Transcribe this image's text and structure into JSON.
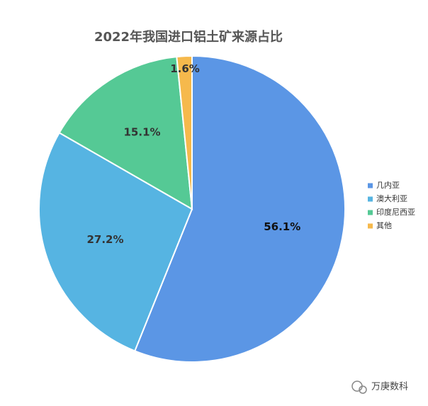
{
  "chart_data": {
    "type": "pie",
    "title": "2022年我国进口铝土矿来源占比",
    "categories": [
      "几内亚",
      "澳大利亚",
      "印度尼西亚",
      "其他"
    ],
    "values": [
      56.1,
      27.2,
      15.1,
      1.6
    ],
    "value_labels": [
      "56.1%",
      "27.2%",
      "15.1%",
      "1.6%"
    ],
    "colors": [
      "#5b96e5",
      "#56b4e2",
      "#55c995",
      "#f6b94c"
    ],
    "legend": "right"
  },
  "watermark": "万庚数科"
}
